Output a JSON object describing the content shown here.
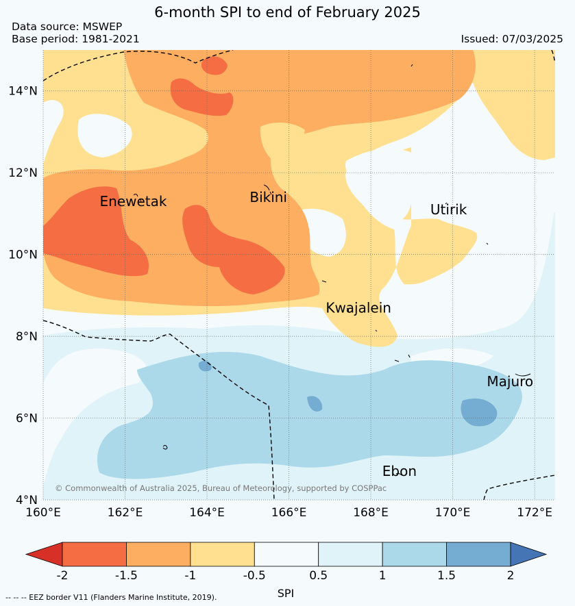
{
  "title": "6-month SPI to end of February 2025",
  "data_source": "Data source: MSWEP",
  "base_period": "Base period: 1981-2021",
  "issued": "Issued: 07/03/2025",
  "copyright": "© Commonwealth of Australia 2025, Bureau of Meteorology, supported by COSPPac",
  "footnote": "--  --  -- EEZ border V11 (Flanders Marine Institute, 2019).",
  "map": {
    "lon_range": [
      160,
      172.5
    ],
    "lat_range": [
      4,
      15
    ],
    "x_ticks": [
      "160°E",
      "162°E",
      "164°E",
      "166°E",
      "168°E",
      "170°E",
      "172°E"
    ],
    "y_ticks": [
      "4°N",
      "6°N",
      "8°N",
      "10°N",
      "12°N",
      "14°N"
    ],
    "places": [
      {
        "name": "Enewetak",
        "lon": 162.2,
        "lat": 11.3
      },
      {
        "name": "Bikini",
        "lon": 165.5,
        "lat": 11.4
      },
      {
        "name": "Utirik",
        "lon": 169.9,
        "lat": 11.1
      },
      {
        "name": "Kwajalein",
        "lon": 167.7,
        "lat": 8.7
      },
      {
        "name": "Majuro",
        "lon": 171.4,
        "lat": 6.9
      },
      {
        "name": "Ebon",
        "lon": 168.7,
        "lat": 4.7
      }
    ]
  },
  "colorbar": {
    "label": "SPI",
    "ticks": [
      "-2",
      "-1.5",
      "-1",
      "-0.5",
      "0.5",
      "1",
      "1.5",
      "2"
    ],
    "colors": [
      "#d73027",
      "#f46d43",
      "#fdae61",
      "#fee090",
      "#f5fafd",
      "#e0f3f8",
      "#abd9e9",
      "#74add1",
      "#4575b4"
    ]
  }
}
